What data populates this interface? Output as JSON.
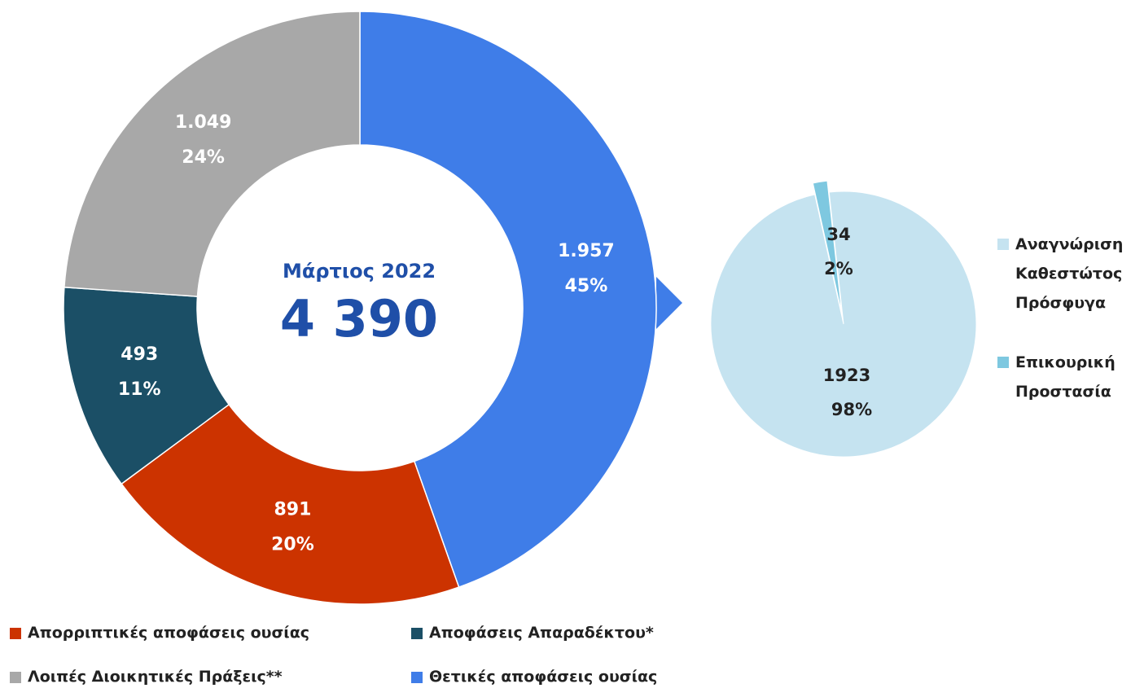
{
  "chart_data": [
    {
      "type": "donut",
      "center_title": "Μάρτιος 2022",
      "center_value": "4 390",
      "categories": [
        "Θετικές αποφάσεις ουσίας",
        "Απορριπτικές αποφάσεις ουσίας",
        "Αποφάσεις Απαραδέκτου*",
        "Λοιπές Διοικητικές Πράξεις**"
      ],
      "values": [
        1957,
        891,
        493,
        1049
      ],
      "value_labels": [
        "1.957",
        "891",
        "493",
        "1.049"
      ],
      "percent_labels": [
        "45%",
        "20%",
        "11%",
        "24%"
      ],
      "colors": [
        "#3f7de8",
        "#cc3300",
        "#1b4f66",
        "#a8a8a8"
      ]
    },
    {
      "type": "pie",
      "categories": [
        "Αναγνώριση Καθεστώτος Πρόσφυγα",
        "Επικουρική Προστασία"
      ],
      "values": [
        1923,
        34
      ],
      "percent_labels": [
        "98%",
        "2%"
      ],
      "colors": [
        "#c5e3f0",
        "#7ec8e0"
      ]
    }
  ]
}
